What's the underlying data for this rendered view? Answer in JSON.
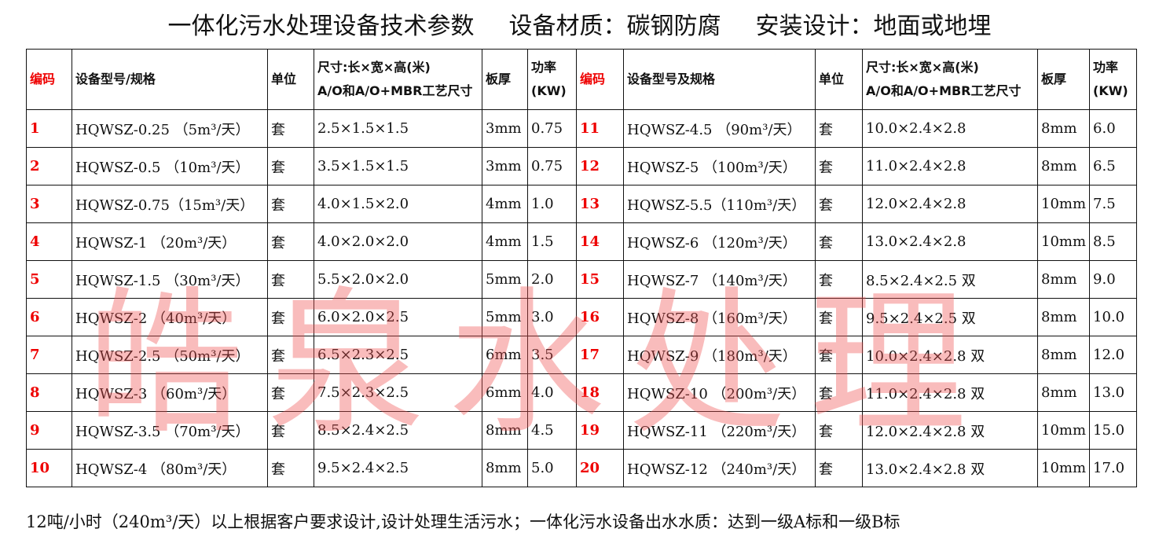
{
  "title": [
    "一体化污水处理设备技术参数",
    "设备材质：碳钢防腐",
    "安装设计：地面或地埋"
  ],
  "headers_left": [
    "编码",
    "设备型号/规格",
    "单位",
    "尺寸:长×宽×高(米)",
    "A/O和A/O+MBR工艺尺寸",
    "板厚",
    "功率",
    "(KW)"
  ],
  "headers_right": [
    "编码",
    "设备型号及规格",
    "单位",
    "尺寸:长×宽×高(米)",
    "A/O和A/O+MBR工艺尺寸",
    "板厚",
    "功率",
    "(KW)"
  ],
  "rows": [
    [
      [
        "1",
        "HQWSZ-0.25 （5m³/天）",
        "套",
        "2.5×1.5×1.5",
        "3mm",
        "0.75"
      ],
      [
        "11",
        "HQWSZ-4.5 （90m³/天）",
        "套",
        "10.0×2.4×2.8",
        "8mm",
        "6.0"
      ]
    ],
    [
      [
        "2",
        "HQWSZ-0.5 （10m³/天）",
        "套",
        "3.5×1.5×1.5",
        "3mm",
        "0.75"
      ],
      [
        "12",
        "HQWSZ-5 （100m³/天）",
        "套",
        "11.0×2.4×2.8",
        "8mm",
        "6.5"
      ]
    ],
    [
      [
        "3",
        "HQWSZ-0.75（15m³/天）",
        "套",
        "4.0×1.5×2.0",
        "4mm",
        "1.0"
      ],
      [
        "13",
        "HQWSZ-5.5（110m³/天）",
        "套",
        "12.0×2.4×2.8",
        "10mm",
        "7.5"
      ]
    ],
    [
      [
        "4",
        "HQWSZ-1 （20m³/天）",
        "套",
        "4.0×2.0×2.0",
        "4mm",
        "1.5"
      ],
      [
        "14",
        "HQWSZ-6 （120m³/天）",
        "套",
        "13.0×2.4×2.8",
        "10mm",
        "8.5"
      ]
    ],
    [
      [
        "5",
        "HQWSZ-1.5 （30m³/天）",
        "套",
        "5.5×2.0×2.0",
        "5mm",
        "2.0"
      ],
      [
        "15",
        "HQWSZ-7 （140m³/天）",
        "套",
        "8.5×2.4×2.5 双",
        "8mm",
        "9.0"
      ]
    ],
    [
      [
        "6",
        "HQWSZ-2 （40m³/天）",
        "套",
        "6.0×2.0×2.5",
        "5mm",
        "3.0"
      ],
      [
        "16",
        "HQWSZ-8 （160m³/天）",
        "套",
        "9.5×2.4×2.5 双",
        "8mm",
        "10.0"
      ]
    ],
    [
      [
        "7",
        "HQWSZ-2.5 （50m³/天）",
        "套",
        "6.5×2.3×2.5",
        "6mm",
        "3.5"
      ],
      [
        "17",
        "HQWSZ-9 （180m³/天）",
        "套",
        "10.0×2.4×2.8 双",
        "8mm",
        "12.0"
      ]
    ],
    [
      [
        "8",
        "HQWSZ-3 （60m³/天）",
        "套",
        "7.5×2.3×2.5",
        "6mm",
        "4.0"
      ],
      [
        "18",
        "HQWSZ-10 （200m³/天）",
        "套",
        "11.0×2.4×2.8 双",
        "8mm",
        "13.0"
      ]
    ],
    [
      [
        "9",
        "HQWSZ-3.5 （70m³/天）",
        "套",
        "8.5×2.4×2.5",
        "8mm",
        "4.5"
      ],
      [
        "19",
        "HQWSZ-11 （220m³/天）",
        "套",
        "12.0×2.4×2.8 双",
        "10mm",
        "15.0"
      ]
    ],
    [
      [
        "10",
        "HQWSZ-4 （80m³/天）",
        "套",
        "9.5×2.4×2.5",
        "8mm",
        "5.0"
      ],
      [
        "20",
        "HQWSZ-12 （240m³/天）",
        "套",
        "13.0×2.4×2.8 双",
        "10mm",
        "17.0"
      ]
    ]
  ],
  "footer": "12吨/小时（240m³/天）以上根据客户要求设计,设计处理生活污水；一体化污水设备出水水质：达到一级A标和一级B标",
  "watermark": "皓泉水处理",
  "colors": {
    "code": "#e00000",
    "watermark": "#f05050"
  }
}
